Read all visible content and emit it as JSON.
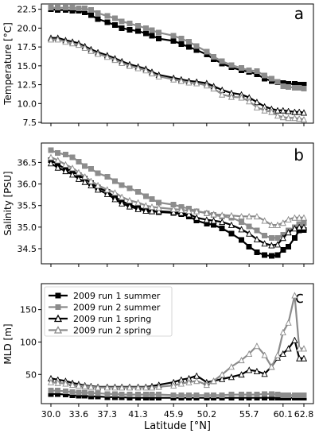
{
  "chart_data": [
    {
      "type": "line",
      "panel_letter": "a",
      "ylabel": "Temperature [°C]",
      "xlabel": "",
      "xlim": [
        30.0,
        62.8
      ],
      "ylim": [
        7.4,
        23.2
      ],
      "yticks": [
        7.5,
        10.0,
        12.5,
        15.0,
        17.5,
        20.0,
        22.5
      ],
      "ytick_labels": [
        "7.5",
        "10.0",
        "12.5",
        "15.0",
        "17.5",
        "20.0",
        "22.5"
      ],
      "xticks": [
        30.0,
        33.6,
        37.3,
        41.3,
        45.9,
        50.2,
        55.7,
        60.1,
        62.8
      ],
      "show_xtick_labels": false,
      "legend": false,
      "x": [
        30.0,
        30.9,
        31.9,
        32.8,
        33.6,
        34.4,
        35.2,
        36.1,
        37.3,
        38.3,
        39.2,
        40.2,
        41.3,
        42.3,
        43.1,
        44.0,
        45.9,
        46.9,
        47.9,
        48.9,
        50.2,
        51.1,
        52.2,
        53.4,
        54.7,
        55.7,
        56.7,
        57.7,
        58.6,
        59.4,
        60.1,
        60.8,
        61.6,
        62.2,
        62.8
      ],
      "series": [
        {
          "name": "2009 run 1 summer",
          "style": "black-square",
          "values": [
            22.5,
            22.4,
            22.4,
            22.3,
            22.3,
            22.1,
            21.7,
            21.2,
            20.8,
            20.4,
            20.0,
            19.8,
            19.6,
            19.3,
            19.0,
            18.6,
            18.3,
            17.9,
            17.5,
            17.1,
            16.5,
            15.9,
            15.3,
            14.8,
            14.4,
            14.2,
            13.9,
            13.3,
            13.0,
            12.8,
            12.7,
            12.6,
            12.6,
            12.5,
            12.5
          ]
        },
        {
          "name": "2009 run 2 summer",
          "style": "gray-square",
          "values": [
            22.7,
            22.7,
            22.7,
            22.7,
            22.6,
            22.6,
            22.4,
            22.0,
            21.6,
            21.3,
            20.9,
            20.6,
            20.3,
            20.0,
            19.7,
            19.4,
            19.0,
            18.6,
            18.2,
            17.6,
            16.9,
            16.2,
            15.6,
            15.1,
            14.7,
            14.4,
            14.3,
            13.7,
            13.3,
            12.9,
            12.3,
            12.2,
            12.1,
            12.1,
            12.0
          ]
        },
        {
          "name": "2009 run 1 spring",
          "style": "black-triangle",
          "values": [
            18.7,
            18.7,
            18.4,
            18.2,
            18.0,
            17.6,
            17.2,
            16.8,
            16.4,
            16.0,
            15.6,
            15.2,
            14.9,
            14.6,
            14.2,
            13.8,
            13.4,
            13.2,
            13.0,
            12.9,
            12.7,
            12.3,
            11.8,
            11.4,
            11.2,
            10.8,
            10.2,
            9.6,
            9.3,
            9.1,
            9.1,
            9.0,
            8.9,
            8.9,
            8.8
          ]
        },
        {
          "name": "2009 run 2 spring",
          "style": "gray-triangle",
          "values": [
            18.5,
            18.5,
            18.2,
            18.0,
            17.8,
            17.4,
            17.0,
            16.6,
            16.2,
            15.8,
            15.4,
            15.0,
            14.7,
            14.4,
            14.0,
            13.6,
            13.2,
            13.0,
            12.8,
            12.7,
            12.4,
            12.0,
            11.2,
            10.9,
            10.8,
            10.3,
            9.5,
            9.1,
            8.9,
            8.4,
            8.2,
            8.1,
            8.1,
            8.0,
            7.9
          ]
        }
      ]
    },
    {
      "type": "line",
      "panel_letter": "b",
      "ylabel": "Salinity [PSU]",
      "xlabel": "",
      "xlim": [
        30.0,
        62.8
      ],
      "ylim": [
        34.15,
        36.95
      ],
      "yticks": [
        34.5,
        35.0,
        35.5,
        36.0,
        36.5
      ],
      "ytick_labels": [
        "34.5",
        "35.0",
        "35.5",
        "36.0",
        "36.5"
      ],
      "xticks": [
        30.0,
        33.6,
        37.3,
        41.3,
        45.9,
        50.2,
        55.7,
        60.1,
        62.8
      ],
      "show_xtick_labels": false,
      "legend": false,
      "x": [
        30.0,
        30.9,
        31.9,
        32.8,
        33.6,
        34.4,
        35.2,
        36.1,
        37.3,
        38.3,
        39.2,
        40.2,
        41.3,
        42.3,
        43.1,
        44.0,
        45.9,
        46.9,
        47.9,
        48.9,
        50.2,
        51.1,
        52.2,
        53.4,
        54.7,
        55.7,
        56.7,
        57.7,
        58.6,
        59.4,
        60.1,
        60.8,
        61.6,
        62.2,
        62.8
      ],
      "series": [
        {
          "name": "2009 run 1 summer",
          "style": "black-square",
          "values": [
            36.55,
            36.45,
            36.35,
            36.3,
            36.2,
            36.12,
            36.02,
            35.92,
            35.82,
            35.7,
            35.6,
            35.52,
            35.45,
            35.4,
            35.37,
            35.35,
            35.33,
            35.3,
            35.25,
            35.15,
            35.08,
            35.05,
            34.97,
            34.85,
            34.7,
            34.55,
            34.42,
            34.35,
            34.33,
            34.35,
            34.47,
            34.55,
            34.75,
            34.92,
            34.93
          ]
        },
        {
          "name": "2009 run 2 summer",
          "style": "gray-square",
          "values": [
            36.78,
            36.72,
            36.68,
            36.62,
            36.52,
            36.42,
            36.35,
            36.25,
            36.17,
            36.07,
            35.97,
            35.9,
            35.82,
            35.72,
            35.65,
            35.57,
            35.52,
            35.47,
            35.43,
            35.37,
            35.32,
            35.28,
            35.25,
            35.22,
            35.12,
            35.02,
            34.92,
            34.8,
            34.75,
            34.75,
            34.82,
            34.92,
            35.0,
            35.07,
            35.1
          ]
        },
        {
          "name": "2009 run 1 spring",
          "style": "black-triangle",
          "values": [
            36.48,
            36.38,
            36.3,
            36.22,
            36.12,
            36.05,
            35.97,
            35.87,
            35.77,
            35.65,
            35.55,
            35.48,
            35.42,
            35.38,
            35.37,
            35.37,
            35.35,
            35.33,
            35.3,
            35.22,
            35.17,
            35.15,
            35.12,
            35.05,
            34.95,
            34.85,
            34.72,
            34.62,
            34.58,
            34.6,
            34.75,
            34.88,
            34.97,
            35.0,
            35.0
          ]
        },
        {
          "name": "2009 run 2 spring",
          "style": "gray-triangle",
          "values": [
            36.62,
            36.55,
            36.45,
            36.37,
            36.27,
            36.17,
            36.07,
            35.97,
            35.87,
            35.8,
            35.7,
            35.62,
            35.57,
            35.5,
            35.47,
            35.45,
            35.42,
            35.4,
            35.38,
            35.37,
            35.33,
            35.3,
            35.28,
            35.27,
            35.25,
            35.25,
            35.25,
            35.15,
            35.05,
            35.05,
            35.1,
            35.18,
            35.22,
            35.22,
            35.22
          ]
        }
      ]
    },
    {
      "type": "line",
      "panel_letter": "c",
      "ylabel": "MLD [m]",
      "xlabel": "Latitude [°N]",
      "xlim": [
        30.0,
        62.8
      ],
      "ylim": [
        5,
        190
      ],
      "yticks": [
        50,
        100,
        150
      ],
      "ytick_labels": [
        "50",
        "100",
        "150"
      ],
      "xticks": [
        30.0,
        33.6,
        37.3,
        41.3,
        45.9,
        50.2,
        55.7,
        60.1,
        62.8
      ],
      "xtick_labels": [
        "30.0",
        "33.6",
        "37.3",
        "41.3",
        "45.9",
        "50.2",
        "55.7",
        "60.1",
        "62.8"
      ],
      "show_xtick_labels": true,
      "legend": true,
      "legend_position": "top-left",
      "x": [
        30.0,
        30.9,
        31.9,
        32.8,
        33.6,
        34.4,
        35.2,
        36.1,
        37.3,
        38.3,
        39.2,
        40.2,
        41.3,
        42.3,
        43.1,
        44.0,
        45.9,
        46.9,
        47.9,
        48.9,
        50.2,
        51.1,
        52.2,
        53.4,
        54.7,
        55.7,
        56.7,
        57.7,
        58.6,
        59.4,
        60.1,
        60.8,
        61.6,
        62.2,
        62.8
      ],
      "series": [
        {
          "name": "2009 run 1 summer",
          "style": "black-square",
          "values": [
            20,
            20,
            19,
            18,
            17,
            17,
            16,
            16,
            15,
            15,
            15,
            14,
            14,
            14,
            14,
            14,
            14,
            14,
            14,
            14,
            14,
            14,
            14,
            14,
            14,
            14,
            14,
            14,
            14,
            14,
            14,
            14,
            14,
            14,
            14
          ]
        },
        {
          "name": "2009 run 2 summer",
          "style": "gray-square",
          "values": [
            25,
            25,
            24,
            23,
            22,
            22,
            21,
            21,
            20,
            20,
            19,
            19,
            19,
            19,
            19,
            19,
            18,
            18,
            18,
            18,
            18,
            18,
            18,
            19,
            19,
            19,
            19,
            20,
            20,
            19,
            18,
            18,
            18,
            18,
            18
          ]
        },
        {
          "name": "2009 run 1 spring",
          "style": "black-triangle",
          "values": [
            44,
            42,
            40,
            37,
            35,
            33,
            32,
            31,
            31,
            31,
            31,
            31,
            31,
            31,
            32,
            34,
            38,
            42,
            44,
            48,
            38,
            40,
            43,
            46,
            50,
            57,
            55,
            51,
            62,
            76,
            82,
            90,
            103,
            75,
            75
          ]
        },
        {
          "name": "2009 run 2 spring",
          "style": "gray-triangle",
          "values": [
            38,
            37,
            36,
            34,
            33,
            32,
            31,
            30,
            30,
            30,
            30,
            30,
            30,
            30,
            30,
            31,
            33,
            36,
            38,
            40,
            34,
            40,
            50,
            62,
            72,
            82,
            94,
            80,
            62,
            80,
            115,
            130,
            172,
            90,
            90
          ]
        }
      ]
    }
  ]
}
